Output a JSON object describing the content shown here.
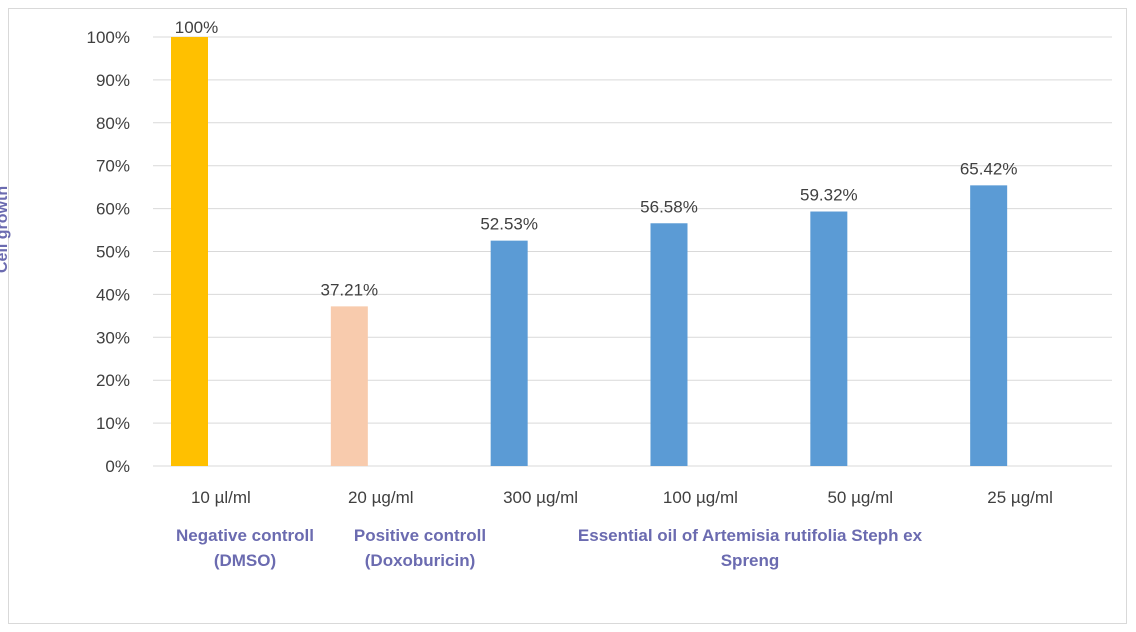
{
  "chart_data": {
    "type": "bar",
    "categories": [
      "10 µl/ml",
      "20 µg/ml",
      "300 µg/ml",
      "100 µg/ml",
      "50 µg/ml",
      "25 µg/ml"
    ],
    "values": [
      100,
      37.21,
      52.53,
      56.58,
      59.32,
      65.42
    ],
    "data_labels": [
      "100%",
      "37.21%",
      "52.53%",
      "56.58%",
      "59.32%",
      "65.42%"
    ],
    "bar_colors": [
      "#ffc000",
      "#f8cbad",
      "#5b9bd5",
      "#5b9bd5",
      "#5b9bd5",
      "#5b9bd5"
    ],
    "ylabel": "Cell growth",
    "ylim": [
      0,
      100
    ],
    "yticks": [
      "0%",
      "10%",
      "20%",
      "30%",
      "40%",
      "50%",
      "60%",
      "70%",
      "80%",
      "90%",
      "100%"
    ],
    "grid": true,
    "group_labels": [
      {
        "lines": [
          "Negative controll",
          "(DMSO)"
        ]
      },
      {
        "lines": [
          "Positive controll",
          "(Doxoburicin)"
        ]
      },
      {
        "lines": [
          "Essential oil of Artemisia rutifolia Steph ex",
          "Spreng"
        ]
      }
    ],
    "label_color": "#6b6bb0",
    "grid_color": "#d9d9d9",
    "text_color": "#404040"
  }
}
